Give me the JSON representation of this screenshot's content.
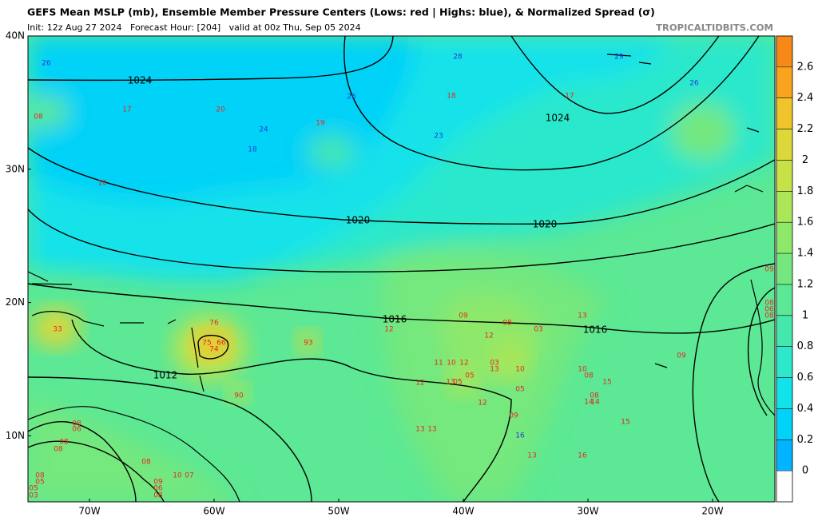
{
  "header": {
    "title": "GEFS Mean MSLP (mb), Ensemble Member Pressure Centers (Lows: red | Highs: blue), & Normalized Spread (σ)",
    "subtitle": "Init: 12z Aug 27 2024   Forecast Hour: [204]   valid at 00z Thu, Sep 05 2024",
    "site": "TROPICALTIDBITS.COM"
  },
  "map": {
    "lat_ticks": [
      {
        "value": 40,
        "label": "40N"
      },
      {
        "value": 30,
        "label": "30N"
      },
      {
        "value": 20,
        "label": "20N"
      },
      {
        "value": 10,
        "label": "10N"
      }
    ],
    "lon_ticks": [
      {
        "value": -70,
        "label": "70W"
      },
      {
        "value": -60,
        "label": "60W"
      },
      {
        "value": -50,
        "label": "50W"
      },
      {
        "value": -40,
        "label": "40W"
      },
      {
        "value": -30,
        "label": "30W"
      },
      {
        "value": -20,
        "label": "20W"
      }
    ],
    "isobar_labels": [
      "1024",
      "1024",
      "1020",
      "1020",
      "1016",
      "1016",
      "1012"
    ],
    "lows": [
      "08",
      "17",
      "20",
      "19",
      "18",
      "17",
      "10",
      "12",
      "09",
      "08",
      "03",
      "13",
      "12",
      "11",
      "10",
      "12",
      "03",
      "13",
      "10",
      "12",
      "13",
      "05",
      "05",
      "05",
      "12",
      "09",
      "10",
      "08",
      "15",
      "08",
      "14",
      "14",
      "15",
      "13",
      "13",
      "13",
      "16",
      "93",
      "76",
      "75",
      "66",
      "74",
      "90",
      "33",
      "09",
      "08",
      "06",
      "08",
      "09",
      "08",
      "06",
      "08",
      "08",
      "08",
      "10",
      "07",
      "09",
      "06",
      "08",
      "08",
      "05",
      "05",
      "03"
    ],
    "highs": [
      "26",
      "28",
      "29",
      "26",
      "26",
      "24",
      "18",
      "23",
      "16"
    ]
  },
  "colorbar": {
    "lim": [
      -0.2,
      2.8
    ],
    "ticks": [
      0,
      0.2,
      0.4,
      0.6,
      0.8,
      1,
      1.2,
      1.4,
      1.6,
      1.8,
      2,
      2.2,
      2.4,
      2.6
    ],
    "colors": [
      "#ffffff",
      "#00b4ff",
      "#00d2f8",
      "#12e2ea",
      "#2ce8cc",
      "#44e8ac",
      "#5ce894",
      "#74e87e",
      "#8ee86a",
      "#aae658",
      "#c6e248",
      "#dcd83a",
      "#f0c42c",
      "#f8a41e",
      "#f88818"
    ]
  }
}
